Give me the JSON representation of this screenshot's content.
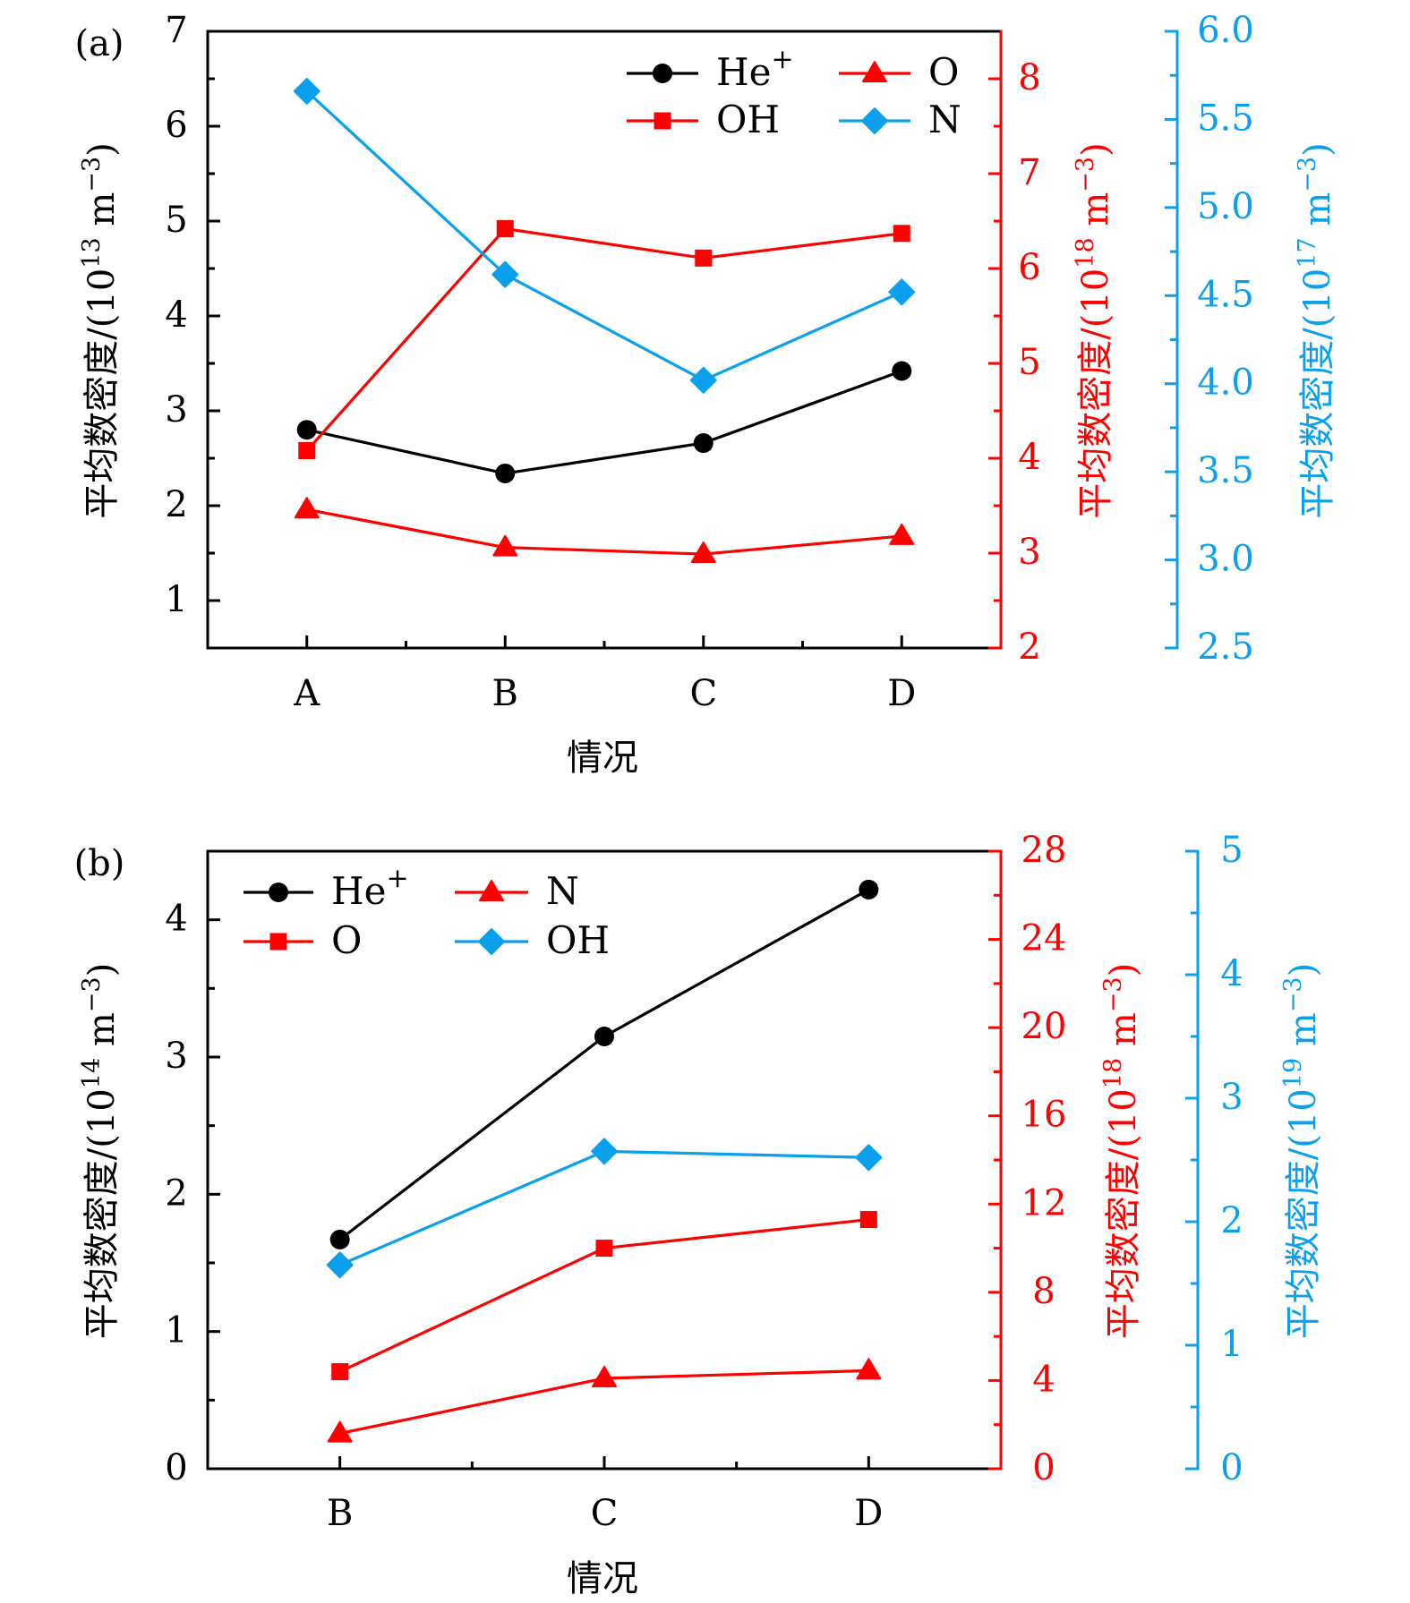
{
  "colors": {
    "black": "#000000",
    "red": "#ff0000",
    "blue": "#0aa0ee"
  },
  "chart_data": [
    {
      "panel_label": "(a)",
      "type": "line",
      "categories": [
        "A",
        "B",
        "C",
        "D"
      ],
      "xlabel": "情况",
      "axes": {
        "left": {
          "label": "平均数密度/(10¹³ m⁻³)",
          "label_main": "平均数密度/(10",
          "label_exp": "13",
          "label_unit": " m",
          "label_unit_exp": "−3",
          "label_close": ")",
          "color": "black",
          "ylim": [
            0.5,
            7
          ],
          "ticks": [
            1,
            2,
            3,
            4,
            5,
            6,
            7
          ],
          "tick_labels": [
            "1",
            "2",
            "3",
            "4",
            "5",
            "6",
            "7"
          ],
          "minor_step": 0.5
        },
        "right": {
          "label": "平均数密度/(10¹⁸ m⁻³)",
          "label_main": "平均数密度/(10",
          "label_exp": "18",
          "label_unit": " m",
          "label_unit_exp": "−3",
          "label_close": ")",
          "color": "red",
          "ylim": [
            2,
            8.5
          ],
          "ticks": [
            2,
            3,
            4,
            5,
            6,
            7,
            8
          ],
          "tick_labels": [
            "2",
            "3",
            "4",
            "5",
            "6",
            "7",
            "8"
          ],
          "minor_step": 0.5
        },
        "right2": {
          "label": "平均数密度/(10¹⁷ m⁻³)",
          "label_main": "平均数密度/(10",
          "label_exp": "17",
          "label_unit": " m",
          "label_unit_exp": "−3",
          "label_close": ")",
          "color": "blue",
          "ylim": [
            2.5,
            6.0
          ],
          "ticks": [
            2.5,
            3.0,
            3.5,
            4.0,
            4.5,
            5.0,
            5.5,
            6.0
          ],
          "tick_labels": [
            "2.5",
            "3.0",
            "3.5",
            "4.0",
            "4.5",
            "5.0",
            "5.5",
            "6.0"
          ],
          "minor_step": 0.25
        }
      },
      "series": [
        {
          "name": "He+",
          "label_main": "He",
          "label_sup": "+",
          "axis": "left",
          "color": "black",
          "marker": "circle",
          "values": [
            2.8,
            2.34,
            2.66,
            3.42
          ]
        },
        {
          "name": "OH",
          "label_main": "OH",
          "label_sup": "",
          "axis": "right",
          "color": "red",
          "marker": "square",
          "values": [
            4.08,
            6.42,
            6.11,
            6.37
          ]
        },
        {
          "name": "O",
          "label_main": "O",
          "label_sup": "",
          "axis": "right",
          "color": "red",
          "marker": "triangle",
          "values": [
            3.46,
            3.06,
            2.99,
            3.18
          ]
        },
        {
          "name": "N",
          "label_main": "N",
          "label_sup": "",
          "axis": "right2",
          "color": "blue",
          "marker": "diamond",
          "values": [
            5.66,
            4.62,
            4.02,
            4.52
          ]
        }
      ],
      "legend": {
        "placement": "top-right",
        "columns": 2,
        "order": [
          "He+",
          "O",
          "OH",
          "N"
        ]
      },
      "grid": false
    },
    {
      "panel_label": "(b)",
      "type": "line",
      "categories": [
        "B",
        "C",
        "D"
      ],
      "xlabel": "情况",
      "axes": {
        "left": {
          "label": "平均数密度/(10¹⁴ m⁻³)",
          "label_main": "平均数密度/(10",
          "label_exp": "14",
          "label_unit": " m",
          "label_unit_exp": "−3",
          "label_close": ")",
          "color": "black",
          "ylim": [
            0,
            4.5
          ],
          "ticks": [
            0,
            1,
            2,
            3,
            4
          ],
          "tick_labels": [
            "0",
            "1",
            "2",
            "3",
            "4"
          ],
          "minor_step": 0.5
        },
        "right": {
          "label": "平均数密度/(10¹⁸ m⁻³)",
          "label_main": "平均数密度/(10",
          "label_exp": "18",
          "label_unit": " m",
          "label_unit_exp": "−3",
          "label_close": ")",
          "color": "red",
          "ylim": [
            0,
            28
          ],
          "ticks": [
            0,
            4,
            8,
            12,
            16,
            20,
            24,
            28
          ],
          "tick_labels": [
            "0",
            "4",
            "8",
            "12",
            "16",
            "20",
            "24",
            "28"
          ],
          "minor_step": 2
        },
        "right2": {
          "label": "平均数密度/(10¹⁹ m⁻³)",
          "label_main": "平均数密度/(10",
          "label_exp": "19",
          "label_unit": " m",
          "label_unit_exp": "−3",
          "label_close": ")",
          "color": "blue",
          "ylim": [
            0,
            5
          ],
          "ticks": [
            0,
            1,
            2,
            3,
            4,
            5
          ],
          "tick_labels": [
            "0",
            "1",
            "2",
            "3",
            "4",
            "5"
          ],
          "minor_step": 0.5
        }
      },
      "series": [
        {
          "name": "He+",
          "label_main": "He",
          "label_sup": "+",
          "axis": "left",
          "color": "black",
          "marker": "circle",
          "values": [
            1.67,
            3.15,
            4.22
          ]
        },
        {
          "name": "O",
          "label_main": "O",
          "label_sup": "",
          "axis": "right",
          "color": "red",
          "marker": "square",
          "values": [
            4.4,
            10.0,
            11.3
          ]
        },
        {
          "name": "N",
          "label_main": "N",
          "label_sup": "",
          "axis": "right",
          "color": "red",
          "marker": "triangle",
          "values": [
            1.6,
            4.1,
            4.45
          ]
        },
        {
          "name": "OH",
          "label_main": "OH",
          "label_sup": "",
          "axis": "right2",
          "color": "blue",
          "marker": "diamond",
          "values": [
            1.65,
            2.57,
            2.52
          ]
        }
      ],
      "legend": {
        "placement": "top-left",
        "columns": 2,
        "order": [
          "He+",
          "N",
          "O",
          "OH"
        ]
      },
      "grid": false
    }
  ]
}
